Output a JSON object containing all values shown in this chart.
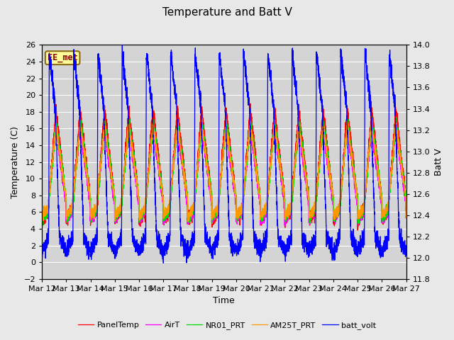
{
  "title": "Temperature and Batt V",
  "xlabel": "Time",
  "ylabel_left": "Temperature (C)",
  "ylabel_right": "Batt V",
  "ylim_left": [
    -2,
    26
  ],
  "ylim_right": [
    11.8,
    14.0
  ],
  "yticks_left": [
    -2,
    0,
    2,
    4,
    6,
    8,
    10,
    12,
    14,
    16,
    18,
    20,
    22,
    24,
    26
  ],
  "yticks_right": [
    11.8,
    12.0,
    12.2,
    12.4,
    12.6,
    12.8,
    13.0,
    13.2,
    13.4,
    13.6,
    13.8,
    14.0
  ],
  "xtick_labels": [
    "Mar 12",
    "Mar 13",
    "Mar 14",
    "Mar 15",
    "Mar 16",
    "Mar 17",
    "Mar 18",
    "Mar 19",
    "Mar 20",
    "Mar 21",
    "Mar 22",
    "Mar 23",
    "Mar 24",
    "Mar 25",
    "Mar 26",
    "Mar 27"
  ],
  "colors": {
    "PanelTemp": "#ff0000",
    "AirT": "#ff00ff",
    "NR01_PRT": "#00dd00",
    "AM25T_PRT": "#ff9900",
    "batt_volt": "#0000ff"
  },
  "legend_labels": [
    "PanelTemp",
    "AirT",
    "NR01_PRT",
    "AM25T_PRT",
    "batt_volt"
  ],
  "annotation_text": "EE_met",
  "background_color": "#e8e8e8",
  "plot_bg_color": "#d4d4d4",
  "grid_color": "#ffffff",
  "title_fontsize": 11,
  "label_fontsize": 9,
  "tick_fontsize": 8
}
